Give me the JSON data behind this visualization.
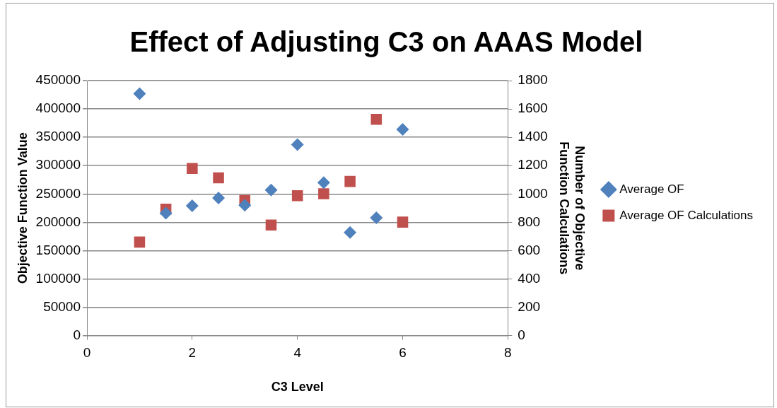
{
  "chart_data": {
    "type": "scatter",
    "title": "Effect of Adjusting C3 on AAAS Model",
    "xlabel": "C3 Level",
    "ylabel": "Objective Function Value",
    "y2label": "Number of Objective Function Calculations",
    "x": [
      1,
      1.5,
      2,
      2.5,
      3,
      3.5,
      4,
      4.5,
      5,
      5.5,
      6
    ],
    "series": [
      {
        "name": "Average OF",
        "color": "#4f81bd",
        "marker": "diamond",
        "values": [
          427000,
          216000,
          229000,
          243000,
          230000,
          257000,
          337000,
          270000,
          182000,
          208000,
          364000
        ]
      },
      {
        "name": "Average OF Calculations",
        "color": "#c0504d",
        "marker": "square",
        "axis": "y2",
        "values": [
          660,
          893,
          1180,
          1114,
          954,
          780,
          988,
          1001,
          1088,
          1527,
          801
        ]
      }
    ],
    "xlim": [
      0,
      8
    ],
    "xticks": [
      0,
      2,
      4,
      6,
      8
    ],
    "ylim": [
      0,
      450000
    ],
    "yticks": [
      0,
      50000,
      100000,
      150000,
      200000,
      250000,
      300000,
      350000,
      400000,
      450000
    ],
    "y2lim": [
      0,
      1800
    ],
    "y2ticks": [
      0,
      200,
      400,
      600,
      800,
      1000,
      1200,
      1400,
      1600,
      1800
    ],
    "grid": "y",
    "legend": "right"
  }
}
